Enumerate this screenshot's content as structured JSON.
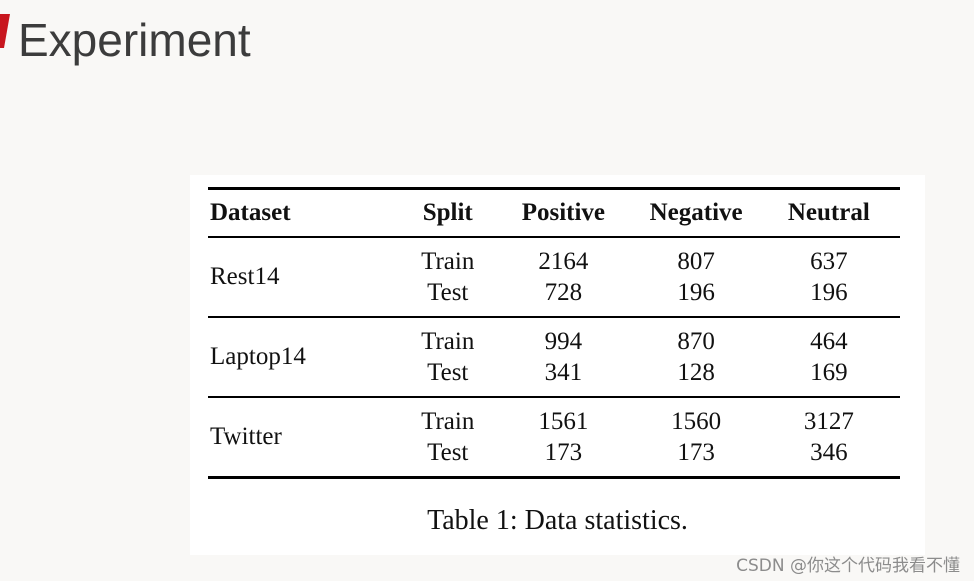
{
  "slide": {
    "title": "Experiment",
    "accent_color": "#c8161e"
  },
  "table": {
    "headers": {
      "dataset": "Dataset",
      "split": "Split",
      "positive": "Positive",
      "negative": "Negative",
      "neutral": "Neutral"
    },
    "rows": [
      {
        "dataset": "Rest14",
        "train": {
          "split": "Train",
          "positive": "2164",
          "negative": "807",
          "neutral": "637"
        },
        "test": {
          "split": "Test",
          "positive": "728",
          "negative": "196",
          "neutral": "196"
        }
      },
      {
        "dataset": "Laptop14",
        "train": {
          "split": "Train",
          "positive": "994",
          "negative": "870",
          "neutral": "464"
        },
        "test": {
          "split": "Test",
          "positive": "341",
          "negative": "128",
          "neutral": "169"
        }
      },
      {
        "dataset": "Twitter",
        "train": {
          "split": "Train",
          "positive": "1561",
          "negative": "1560",
          "neutral": "3127"
        },
        "test": {
          "split": "Test",
          "positive": "173",
          "negative": "173",
          "neutral": "346"
        }
      }
    ],
    "caption": "Table 1: Data statistics."
  },
  "watermark": "CSDN @你这个代码我看不懂"
}
